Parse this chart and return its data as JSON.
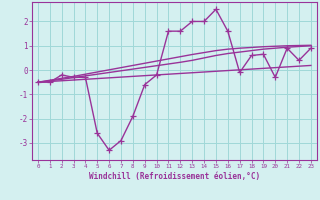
{
  "xlabel": "Windchill (Refroidissement éolien,°C)",
  "background_color": "#d4f0f0",
  "grid_color": "#a0d8d8",
  "line_color": "#993399",
  "x_data": [
    0,
    1,
    2,
    3,
    4,
    5,
    6,
    7,
    8,
    9,
    10,
    11,
    12,
    13,
    14,
    15,
    16,
    17,
    18,
    19,
    20,
    21,
    22,
    23
  ],
  "y_main": [
    -0.5,
    -0.5,
    -0.2,
    -0.3,
    -0.3,
    -2.6,
    -3.3,
    -2.9,
    -1.9,
    -0.6,
    -0.2,
    1.6,
    1.6,
    2.0,
    2.0,
    2.5,
    1.6,
    -0.1,
    0.6,
    0.65,
    -0.3,
    0.9,
    0.4,
    0.9
  ],
  "y_trend1": [
    -0.5,
    -0.47,
    -0.44,
    -0.41,
    -0.38,
    -0.35,
    -0.32,
    -0.29,
    -0.26,
    -0.23,
    -0.2,
    -0.17,
    -0.14,
    -0.11,
    -0.08,
    -0.05,
    -0.02,
    0.01,
    0.04,
    0.07,
    0.1,
    0.13,
    0.16,
    0.19
  ],
  "y_trend2": [
    -0.5,
    -0.44,
    -0.38,
    -0.31,
    -0.24,
    -0.17,
    -0.1,
    -0.03,
    0.04,
    0.11,
    0.18,
    0.25,
    0.32,
    0.4,
    0.5,
    0.6,
    0.68,
    0.74,
    0.8,
    0.86,
    0.9,
    0.94,
    0.97,
    1.0
  ],
  "y_trend3": [
    -0.5,
    -0.42,
    -0.34,
    -0.26,
    -0.17,
    -0.08,
    0.01,
    0.1,
    0.19,
    0.28,
    0.37,
    0.46,
    0.55,
    0.64,
    0.72,
    0.8,
    0.86,
    0.9,
    0.93,
    0.96,
    0.98,
    1.0,
    1.01,
    1.02
  ],
  "ylim": [
    -3.7,
    2.8
  ],
  "xlim": [
    -0.5,
    23.5
  ],
  "yticks": [
    -3,
    -2,
    -1,
    0,
    1,
    2
  ],
  "xticks": [
    0,
    1,
    2,
    3,
    4,
    5,
    6,
    7,
    8,
    9,
    10,
    11,
    12,
    13,
    14,
    15,
    16,
    17,
    18,
    19,
    20,
    21,
    22,
    23
  ],
  "tick_color": "#993399",
  "xlabel_color": "#993399",
  "markersize": 4,
  "linewidth": 1.0
}
